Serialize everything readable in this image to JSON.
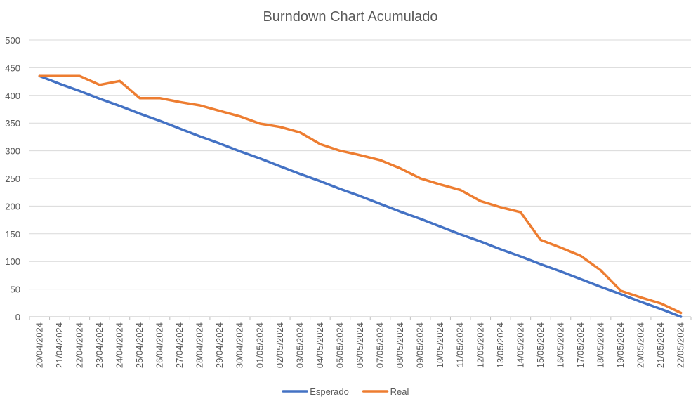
{
  "chart_data": {
    "type": "line",
    "title": "Burndown Chart Acumulado",
    "xlabel": "",
    "ylabel": "",
    "ylim": [
      0,
      500
    ],
    "yticks": [
      0,
      50,
      100,
      150,
      200,
      250,
      300,
      350,
      400,
      450,
      500
    ],
    "grid": true,
    "legend": "bottom",
    "categories": [
      "20/04/2024",
      "21/04/2024",
      "22/04/2024",
      "23/04/2024",
      "24/04/2024",
      "25/04/2024",
      "26/04/2024",
      "27/04/2024",
      "28/04/2024",
      "29/04/2024",
      "30/04/2024",
      "01/05/2024",
      "02/05/2024",
      "03/05/2024",
      "04/05/2024",
      "05/05/2024",
      "06/05/2024",
      "07/05/2024",
      "08/05/2024",
      "09/05/2024",
      "10/05/2024",
      "11/05/2024",
      "12/05/2024",
      "13/05/2024",
      "14/05/2024",
      "15/05/2024",
      "16/05/2024",
      "17/05/2024",
      "18/05/2024",
      "19/05/2024",
      "20/05/2024",
      "21/05/2024",
      "22/05/2024"
    ],
    "series": [
      {
        "name": "Esperado",
        "color": "#4472c4",
        "values": [
          435,
          421,
          408,
          394,
          381,
          367,
          354,
          340,
          326,
          313,
          299,
          286,
          272,
          258,
          245,
          231,
          218,
          204,
          190,
          177,
          163,
          149,
          136,
          122,
          109,
          95,
          82,
          68,
          54,
          41,
          27,
          14,
          0
        ]
      },
      {
        "name": "Real",
        "color": "#ed7d31",
        "values": [
          435,
          435,
          435,
          419,
          426,
          395,
          395,
          388,
          382,
          372,
          362,
          349,
          343,
          333,
          312,
          300,
          292,
          283,
          268,
          250,
          239,
          229,
          209,
          198,
          189,
          139,
          125,
          110,
          84,
          47,
          35,
          24,
          7
        ]
      }
    ]
  }
}
